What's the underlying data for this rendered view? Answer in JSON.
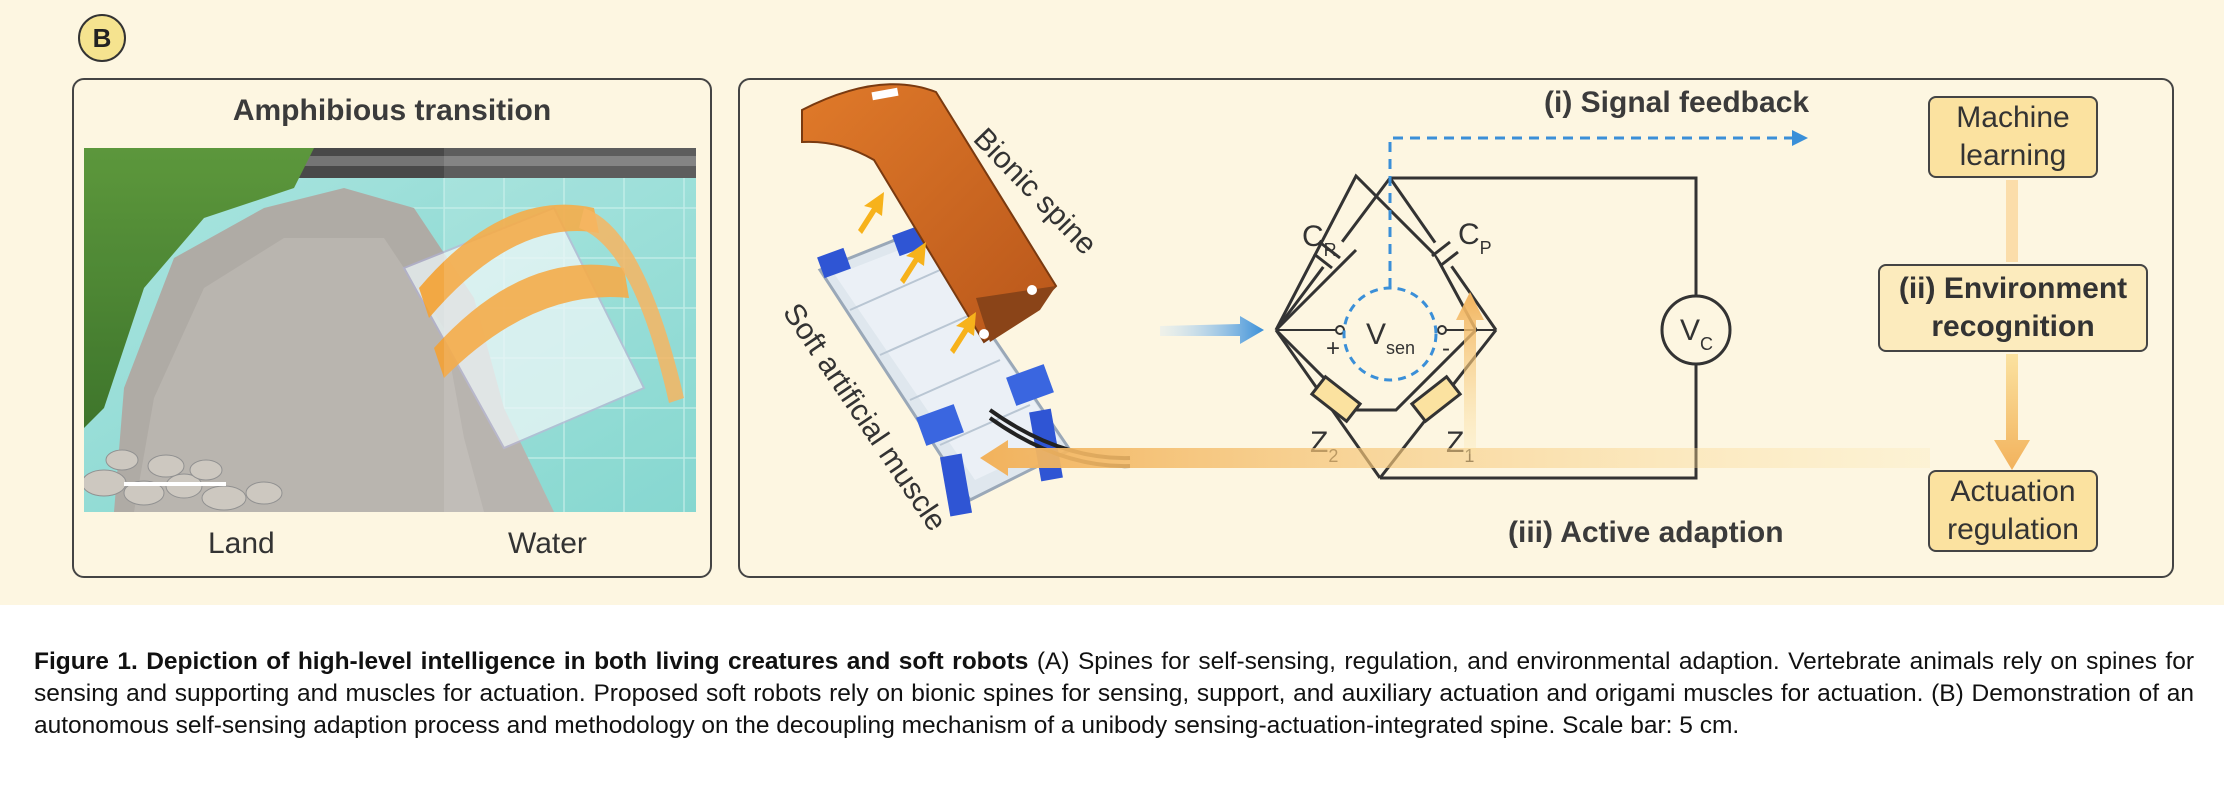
{
  "panel_label": "B",
  "left_panel": {
    "title": "Amphibious transition",
    "land_label": "Land",
    "water_label": "Water"
  },
  "right_panel": {
    "bionic_spine_label": "Bionic spine",
    "muscle_label": "Soft artificial muscle",
    "signal_feedback_label": "(i) Signal feedback",
    "active_adaption_label": "(iii) Active adaption",
    "machine_learning": "Machine learning",
    "environment_recognition": "(ii) Environment recognition",
    "actuation_regulation": "Actuation regulation",
    "circuit": {
      "cr_main": "C",
      "cr_sub": "R",
      "cp_main": "C",
      "cp_sub": "P",
      "z2_main": "Z",
      "z2_sub": "2",
      "z1_main": "Z",
      "z1_sub": "1",
      "vsen_main": "V",
      "vsen_sub": "sen",
      "vc_main": "V",
      "vc_sub": "C",
      "plus": "+",
      "minus": "-"
    }
  },
  "caption": {
    "bold": "Figure 1.  Depiction of high-level intelligence in both living creatures and soft robots",
    "text": " (A) Spines for self-sensing, regulation, and environmental adaption. Vertebrate animals rely on spines for sensing and supporting and muscles for actuation. Proposed soft robots rely on bionic spines for sensing, support, and auxiliary actuation and origami muscles for actuation. (B) Demonstration of an autonomous self-sensing adaption process and methodology on the decoupling mechanism of a unibody sensing-actuation-integrated spine. Scale bar: 5 cm."
  },
  "colors": {
    "background": "#fdf6e1",
    "box_fill": "#fbe2a0",
    "spine_orange": "#d2691e",
    "arrow_orange": "#f2b25c",
    "arrow_blue": "#3a8fd8",
    "muscle_blue": "#2f55d4"
  }
}
